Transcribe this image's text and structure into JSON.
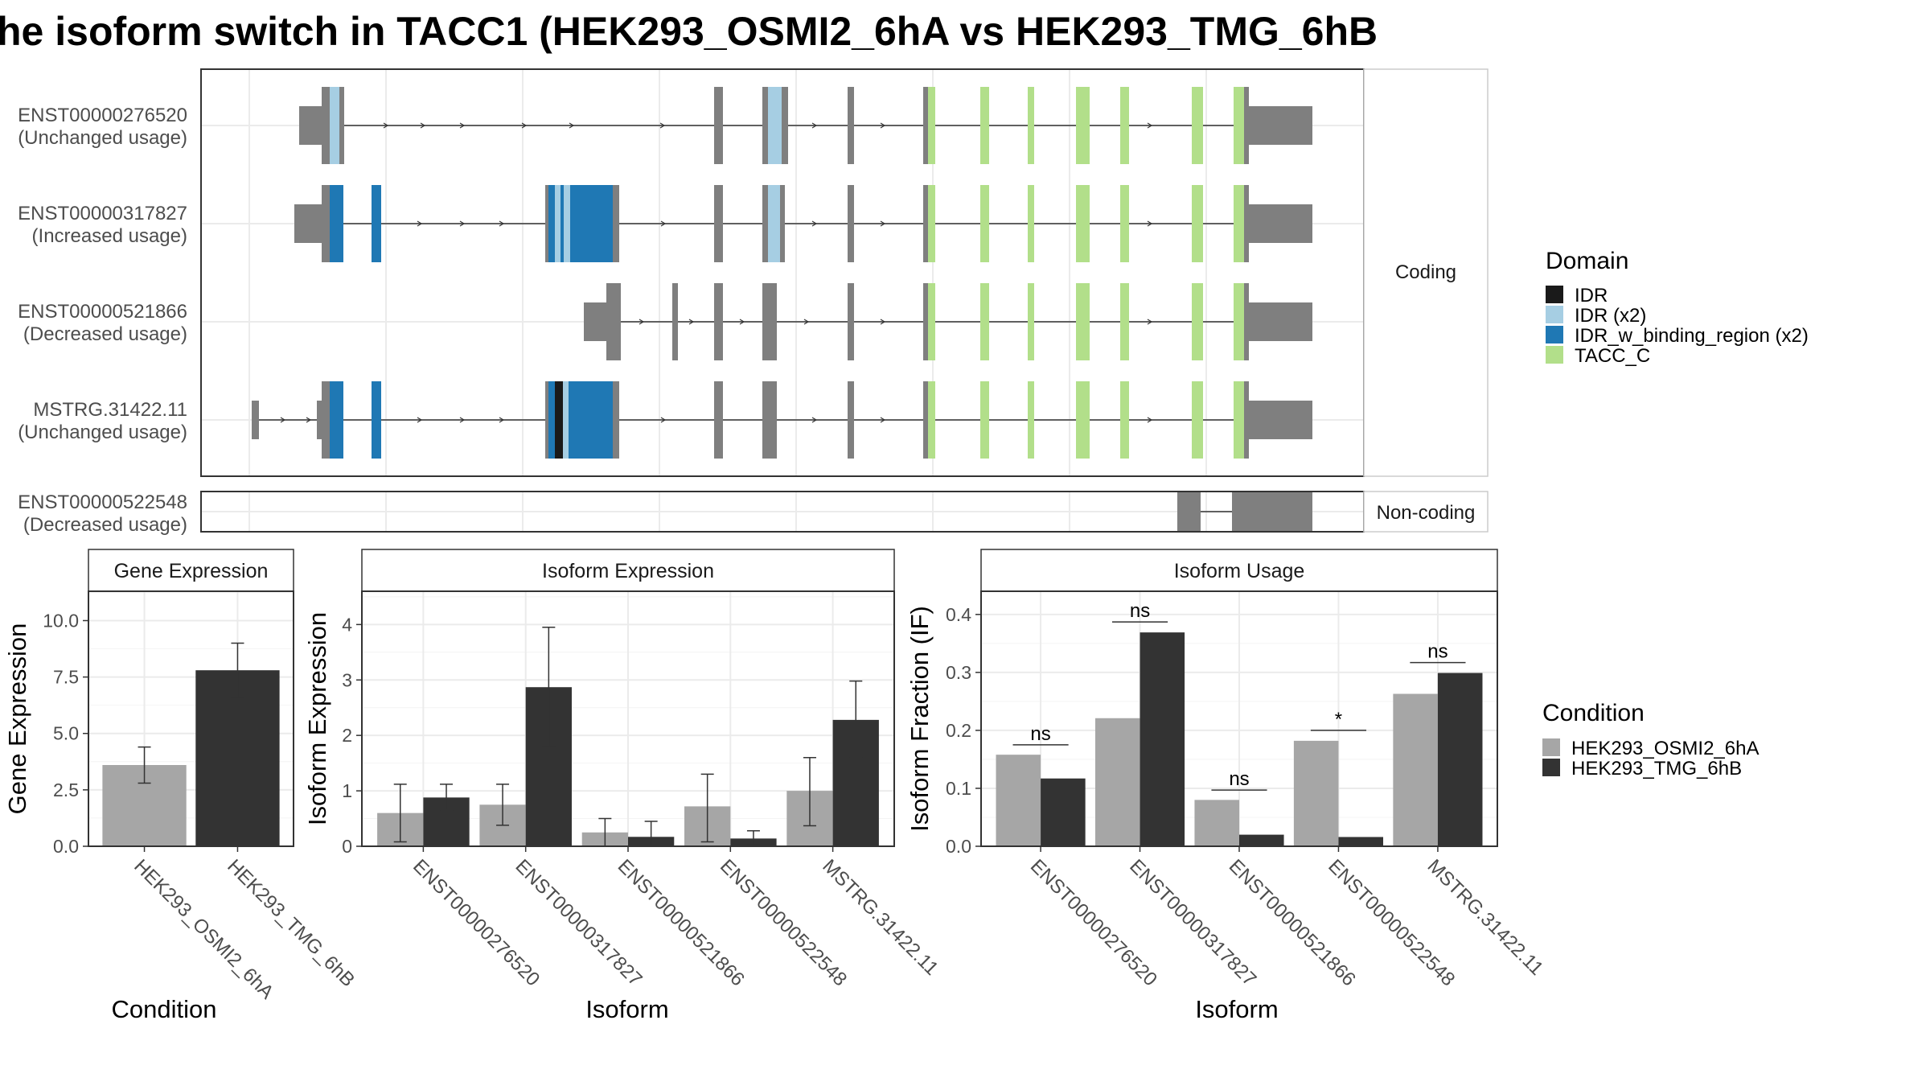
{
  "title": "he isoform switch in TACC1 (HEK293_OSMI2_6hA vs HEK293_TMG_6hB",
  "structure": {
    "strips": [
      "Coding",
      "Non-coding"
    ],
    "transcripts": [
      {
        "id": "ENST00000276520",
        "usage": "(Unchanged usage)"
      },
      {
        "id": "ENST00000317827",
        "usage": "(Increased usage)"
      },
      {
        "id": "ENST00000521866",
        "usage": "(Decreased usage)"
      },
      {
        "id": "MSTRG.31422.11",
        "usage": "(Unchanged usage)"
      },
      {
        "id": "ENST00000522548",
        "usage": "(Decreased usage)"
      }
    ]
  },
  "legend_domain": {
    "title": "Domain",
    "items": [
      {
        "label": "IDR",
        "color": "#1a1a1a"
      },
      {
        "label": "IDR (x2)",
        "color": "#a6cee3"
      },
      {
        "label": "IDR_w_binding_region (x2)",
        "color": "#1f78b4"
      },
      {
        "label": "TACC_C",
        "color": "#b2df8a"
      }
    ]
  },
  "legend_condition": {
    "title": "Condition",
    "items": [
      {
        "label": "HEK293_OSMI2_6hA",
        "color": "#a6a6a6"
      },
      {
        "label": "HEK293_TMG_6hB",
        "color": "#333333"
      }
    ]
  },
  "chart_data": [
    {
      "type": "bar",
      "title": "Gene Expression",
      "xlabel": "Condition",
      "ylabel": "Gene Expression",
      "ylim": [
        0,
        11.3
      ],
      "yticks": [
        "0.0",
        "2.5",
        "5.0",
        "7.5",
        "10.0"
      ],
      "categories": [
        "HEK293_OSMI2_6hA",
        "HEK293_TMG_6hB"
      ],
      "values": [
        3.6,
        7.8
      ],
      "error": [
        [
          2.8,
          4.4
        ],
        [
          6.6,
          9.0
        ]
      ]
    },
    {
      "type": "bar",
      "title": "Isoform Expression",
      "xlabel": "Isoform",
      "ylabel": "Isoform Expression",
      "ylim": [
        0,
        4.6
      ],
      "yticks": [
        "0",
        "1",
        "2",
        "3",
        "4"
      ],
      "categories": [
        "ENST00000276520",
        "ENST00000317827",
        "ENST00000521866",
        "ENST00000522548",
        "MSTRG.31422.11"
      ],
      "series": [
        {
          "name": "HEK293_OSMI2_6hA",
          "values": [
            0.6,
            0.75,
            0.25,
            0.72,
            1.0
          ],
          "error": [
            [
              0.08,
              1.12
            ],
            [
              0.38,
              1.12
            ],
            [
              0.0,
              0.5
            ],
            [
              0.08,
              1.3
            ],
            [
              0.37,
              1.6
            ]
          ]
        },
        {
          "name": "HEK293_TMG_6hB",
          "values": [
            0.88,
            2.87,
            0.17,
            0.14,
            2.28
          ],
          "error": [
            [
              0.65,
              1.12
            ],
            [
              1.8,
              3.95
            ],
            [
              0.0,
              0.45
            ],
            [
              0.02,
              0.28
            ],
            [
              1.6,
              2.98
            ]
          ]
        }
      ]
    },
    {
      "type": "bar",
      "title": "Isoform Usage",
      "xlabel": "Isoform",
      "ylabel": "Isoform Fraction (IF)",
      "ylim": [
        0,
        0.44
      ],
      "yticks": [
        "0.0",
        "0.1",
        "0.2",
        "0.3",
        "0.4"
      ],
      "categories": [
        "ENST00000276520",
        "ENST00000317827",
        "ENST00000521866",
        "ENST00000522548",
        "MSTRG.31422.11"
      ],
      "series": [
        {
          "name": "HEK293_OSMI2_6hA",
          "values": [
            0.158,
            0.221,
            0.08,
            0.182,
            0.263
          ]
        },
        {
          "name": "HEK293_TMG_6hB",
          "values": [
            0.117,
            0.369,
            0.02,
            0.016,
            0.299
          ]
        }
      ],
      "significance": [
        "ns",
        "ns",
        "ns",
        "*",
        "ns"
      ],
      "significance_y": [
        0.175,
        0.387,
        0.097,
        0.2,
        0.317
      ]
    }
  ]
}
